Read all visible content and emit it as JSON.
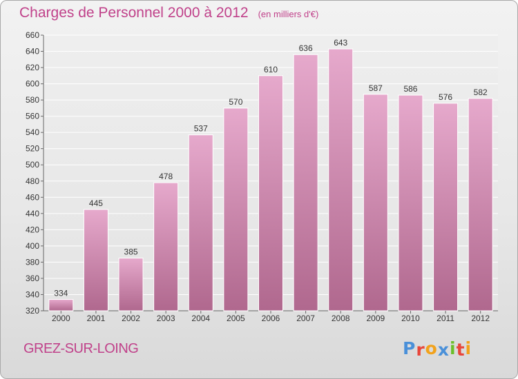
{
  "chart_data": {
    "type": "bar",
    "title": "Charges de Personnel 2000 à 2012",
    "subtitle": "(en milliers d'€)",
    "categories": [
      "2000",
      "2001",
      "2002",
      "2003",
      "2004",
      "2005",
      "2006",
      "2007",
      "2008",
      "2009",
      "2010",
      "2011",
      "2012"
    ],
    "values": [
      334,
      445,
      385,
      478,
      537,
      570,
      610,
      636,
      643,
      587,
      586,
      576,
      582
    ],
    "ylim": [
      320,
      660
    ],
    "yticks": [
      320,
      340,
      360,
      380,
      400,
      420,
      440,
      460,
      480,
      500,
      520,
      540,
      560,
      580,
      600,
      620,
      640,
      660
    ],
    "grid": true,
    "bar_color": "#d088b0"
  },
  "footer": {
    "commune": "GREZ-SUR-LOING",
    "brand": "Proxiti",
    "brand_colors": [
      "#4a90d9",
      "#e8463a",
      "#f2a21b",
      "#4a90d9",
      "#6cbe2a",
      "#e8463a",
      "#f2a21b"
    ]
  }
}
